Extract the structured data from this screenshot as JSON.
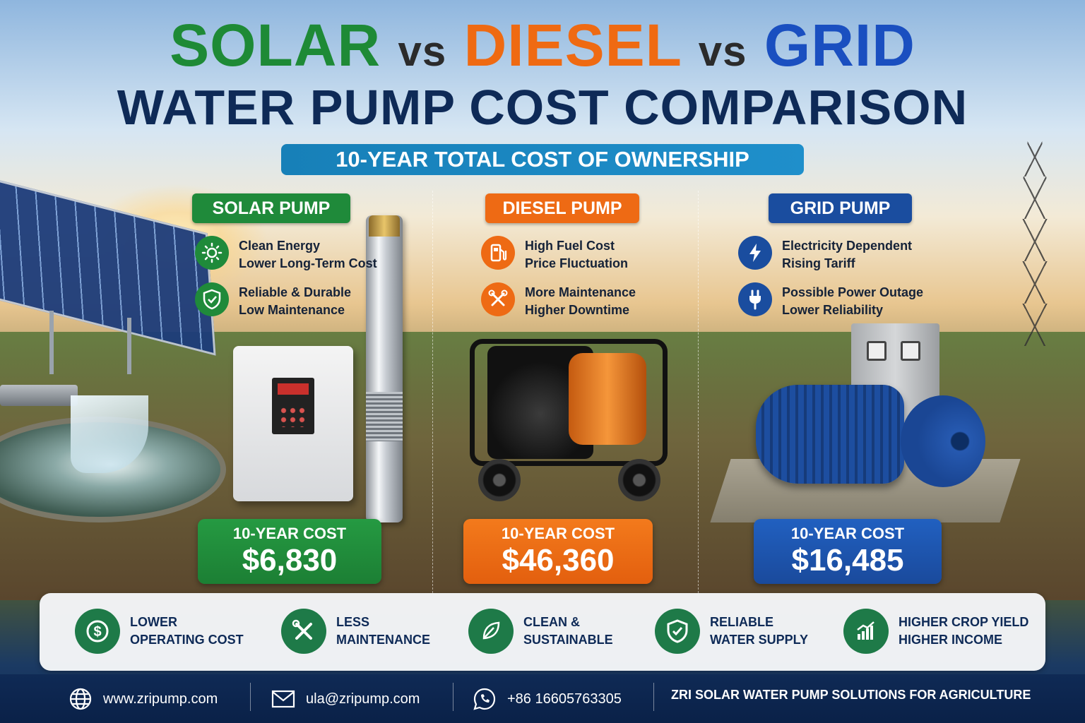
{
  "title": {
    "word_solar": "SOLAR",
    "vs1": "vs",
    "word_diesel": "DIESEL",
    "vs2": "vs",
    "word_grid": "GRID",
    "line2": "WATER PUMP COST COMPARISON",
    "subtitle": "10-YEAR TOTAL COST OF OWNERSHIP"
  },
  "colors": {
    "solar": "#1f8a3a",
    "diesel": "#ee6a14",
    "grid": "#1a4d9f",
    "navy": "#0e2a57"
  },
  "sections": {
    "solar": {
      "label": "SOLAR PUMP",
      "features": [
        {
          "icon": "sun-icon",
          "line1": "Clean Energy",
          "line2": "Lower Long-Term Cost"
        },
        {
          "icon": "shield-check-icon",
          "line1": "Reliable & Durable",
          "line2": "Low Maintenance"
        }
      ],
      "cost_label": "10-YEAR COST",
      "cost_value": "$6,830"
    },
    "diesel": {
      "label": "DIESEL PUMP",
      "features": [
        {
          "icon": "fuel-pump-icon",
          "line1": "High Fuel Cost",
          "line2": "Price Fluctuation"
        },
        {
          "icon": "wrench-icon",
          "line1": "More Maintenance",
          "line2": "Higher Downtime"
        }
      ],
      "cost_label": "10-YEAR COST",
      "cost_value": "$46,360"
    },
    "grid": {
      "label": "GRID PUMP",
      "features": [
        {
          "icon": "lightning-icon",
          "line1": "Electricity Dependent",
          "line2": "Rising Tariff"
        },
        {
          "icon": "plug-icon",
          "line1": "Possible Power Outage",
          "line2": "Lower Reliability"
        }
      ],
      "cost_label": "10-YEAR COST",
      "cost_value": "$16,485"
    }
  },
  "benefits": [
    {
      "icon": "dollar-down-icon",
      "line1": "LOWER",
      "line2": "OPERATING COST"
    },
    {
      "icon": "tools-icon",
      "line1": "LESS",
      "line2": "MAINTENANCE"
    },
    {
      "icon": "leaf-icon",
      "line1": "CLEAN &",
      "line2": "SUSTAINABLE"
    },
    {
      "icon": "shield-check-icon",
      "line1": "RELIABLE",
      "line2": "WATER SUPPLY"
    },
    {
      "icon": "growth-chart-icon",
      "line1": "HIGHER CROP YIELD",
      "line2": "HIGHER INCOME"
    }
  ],
  "footer": {
    "website": "www.zripump.com",
    "email": "ula@zripump.com",
    "phone": "+86 16605763305",
    "tagline": "ZRI SOLAR WATER PUMP SOLUTIONS FOR AGRICULTURE"
  }
}
